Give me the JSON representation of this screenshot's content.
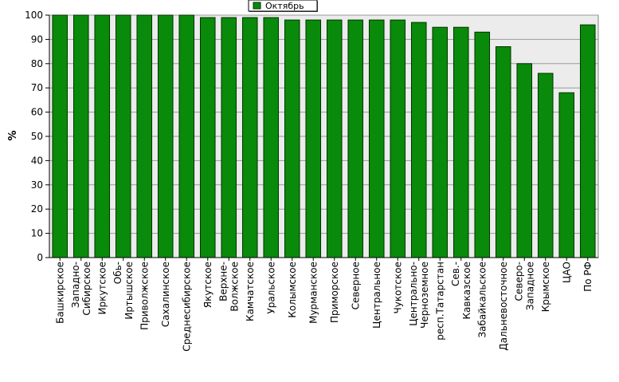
{
  "chart_data": {
    "type": "bar",
    "ylabel": "%",
    "ylim": [
      0,
      100
    ],
    "yticks": [
      0,
      10,
      20,
      30,
      40,
      50,
      60,
      70,
      80,
      90,
      100
    ],
    "grid": true,
    "legend_position": "top-center",
    "colors": {
      "bar": "#0a8a0a",
      "bar_edge": "#003300",
      "plot_bg": "#ececec",
      "grid": "#9a9a9a"
    },
    "categories": [
      [
        "Башкирское"
      ],
      [
        "Западно-",
        "Сибирское"
      ],
      [
        "Иркутское"
      ],
      [
        "Обь-",
        "Иртышское"
      ],
      [
        "Приволжское"
      ],
      [
        "Сахалинское"
      ],
      [
        "Среднесибирское"
      ],
      [
        "Якутское"
      ],
      [
        "Верхне-",
        "Волжское"
      ],
      [
        "Камчатское"
      ],
      [
        "Уральское"
      ],
      [
        "Колымское"
      ],
      [
        "Мурманское"
      ],
      [
        "Приморское"
      ],
      [
        "Северное"
      ],
      [
        "Центральное"
      ],
      [
        "Чукотское"
      ],
      [
        "Центрально-",
        "Черноземное"
      ],
      [
        "респ.Татарстан"
      ],
      [
        "Сев.-",
        "Кавказское"
      ],
      [
        "Забайкальское"
      ],
      [
        "Дальневосточное"
      ],
      [
        "Северо-",
        "Западное"
      ],
      [
        "Крымское"
      ],
      [
        "ЦАО"
      ],
      [
        "По РФ"
      ]
    ],
    "series": [
      {
        "name": "Октябрь",
        "values": [
          100,
          100,
          100,
          100,
          100,
          100,
          100,
          99,
          99,
          99,
          99,
          98,
          98,
          98,
          98,
          98,
          98,
          97,
          95,
          95,
          93,
          87,
          80,
          76,
          68,
          96
        ]
      }
    ]
  }
}
